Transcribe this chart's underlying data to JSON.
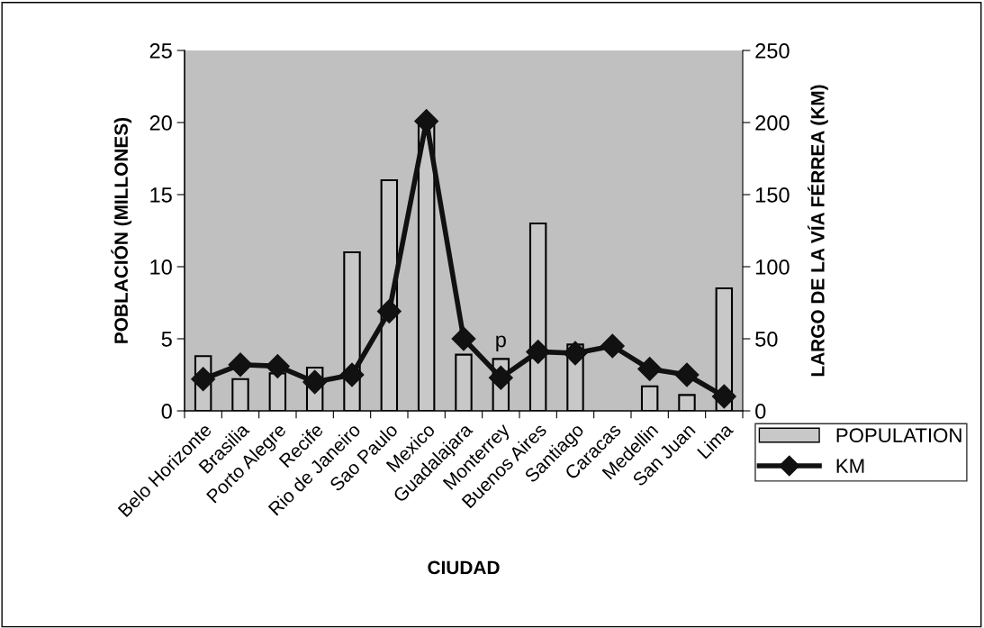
{
  "chart_data": {
    "type": "bar",
    "xlabel": "CIUDAD",
    "ylabel": "POBLACIÓN (MILLONES)",
    "y2label": "LARGO DE LA VÍA FÉRREA (KM)",
    "categories": [
      "Belo Horizonte",
      "Brasilia",
      "Porto Alegre",
      "Recife",
      "Rio de Janeiro",
      "Sao Paulo",
      "Mexico",
      "Guadalajara",
      "Monterrey",
      "Buenos Aires",
      "Santiago",
      "Caracas",
      "Medellin",
      "San Juan",
      "Lima"
    ],
    "series": [
      {
        "name": "POPULATION",
        "color": "#c8c8c8",
        "values": [
          3.8,
          2.2,
          2.6,
          3.0,
          11,
          16,
          20,
          3.9,
          3.6,
          13,
          4.6,
          null,
          1.7,
          1.1,
          8.5
        ]
      },
      {
        "name": "KM",
        "type": "line",
        "axis": "y2",
        "color": "#111111",
        "marker": "diamond",
        "values": [
          22,
          32,
          31,
          20,
          25,
          69,
          201,
          50,
          23,
          41,
          40,
          45,
          29,
          25,
          10
        ]
      }
    ],
    "ylim": [
      0,
      25
    ],
    "yticks": [
      0,
      5,
      10,
      15,
      20,
      25
    ],
    "y2lim": [
      0,
      250
    ],
    "y2ticks": [
      0,
      50,
      100,
      150,
      200,
      250
    ],
    "annotations": [
      {
        "text": "p",
        "x": "Monterrey",
        "y": 3.6
      }
    ],
    "grid": false,
    "legend": "bottom right"
  }
}
